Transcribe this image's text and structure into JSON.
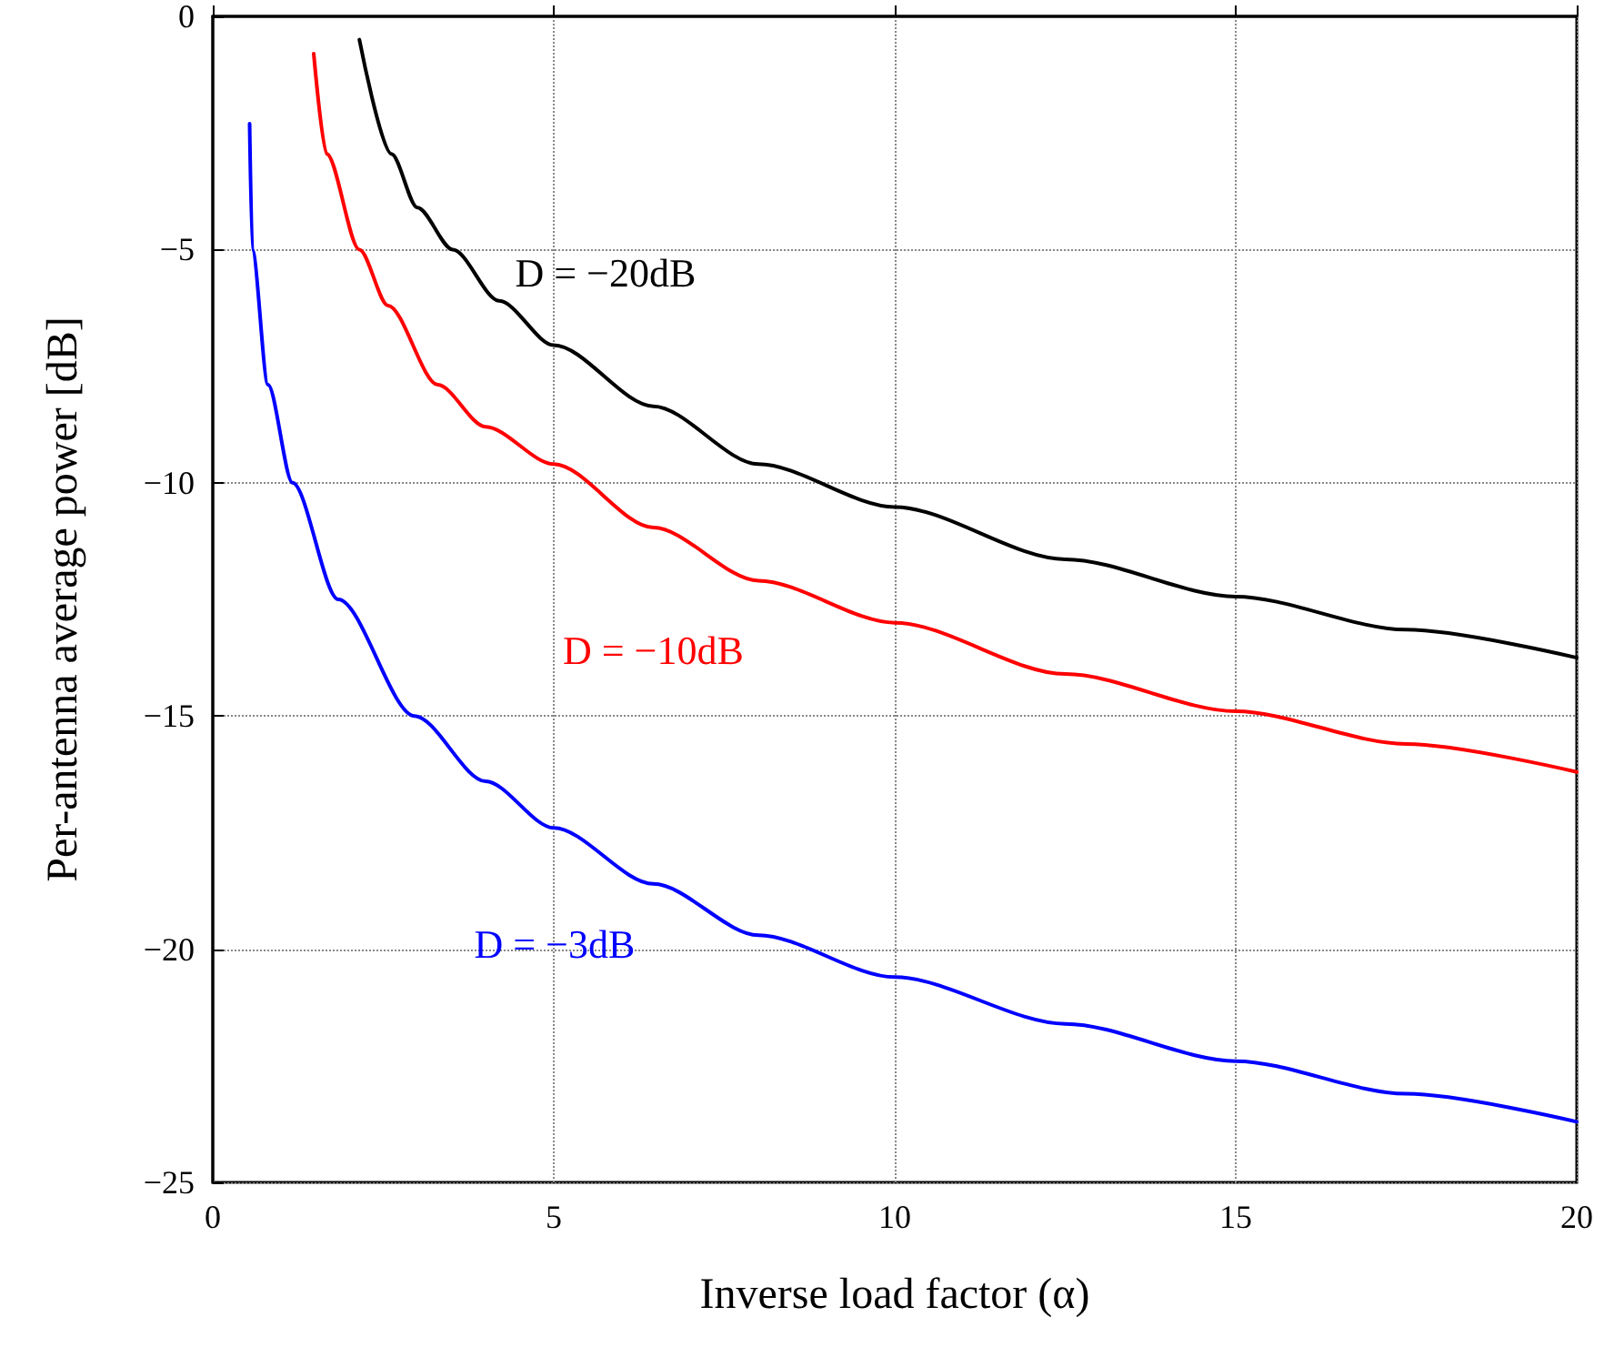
{
  "chart_data": {
    "type": "line",
    "xlabel": "Inverse load factor (α)",
    "ylabel": "Per-antenna average power [dB]",
    "xlim": [
      0,
      20
    ],
    "xticks": [
      0,
      5,
      10,
      15,
      20
    ],
    "ylim": [
      -25,
      0
    ],
    "yticks": [
      -25,
      -20,
      -15,
      -10,
      -5,
      0
    ],
    "grid": true,
    "legend": false,
    "marker": "none",
    "line_style": "solid",
    "series": [
      {
        "name": "D = −20dB",
        "color": "#000000",
        "x": [
          2.15,
          2.62,
          3.0,
          3.52,
          4.2,
          5,
          6.46,
          8,
          10,
          12.5,
          15,
          17.5,
          20
        ],
        "values": [
          -0.5,
          -2.95,
          -4.1,
          -5,
          -6.1,
          -7.05,
          -8.36,
          -9.6,
          -10.52,
          -11.64,
          -12.44,
          -13.15,
          -13.75
        ]
      },
      {
        "name": "D = −10dB",
        "color": "#ff0000",
        "x": [
          1.48,
          1.67,
          2.15,
          2.57,
          3.3,
          4,
          5,
          6.46,
          8,
          10,
          12.5,
          15,
          17.5,
          20
        ],
        "values": [
          -0.8,
          -2.95,
          -5,
          -6.2,
          -7.9,
          -8.8,
          -9.6,
          -10.96,
          -12.1,
          -13,
          -14.1,
          -14.9,
          -15.6,
          -16.2
        ]
      },
      {
        "name": "D = −3dB",
        "color": "#0000ff",
        "x": [
          0.54,
          0.58,
          0.81,
          1.17,
          1.84,
          2.96,
          4,
          5,
          6.46,
          8,
          10,
          12.5,
          15,
          17.5,
          20
        ],
        "values": [
          -2.3,
          -5,
          -7.9,
          -10,
          -12.5,
          -15,
          -16.4,
          -17.4,
          -18.6,
          -19.7,
          -20.6,
          -21.6,
          -22.4,
          -23.1,
          -23.7
        ]
      }
    ]
  }
}
